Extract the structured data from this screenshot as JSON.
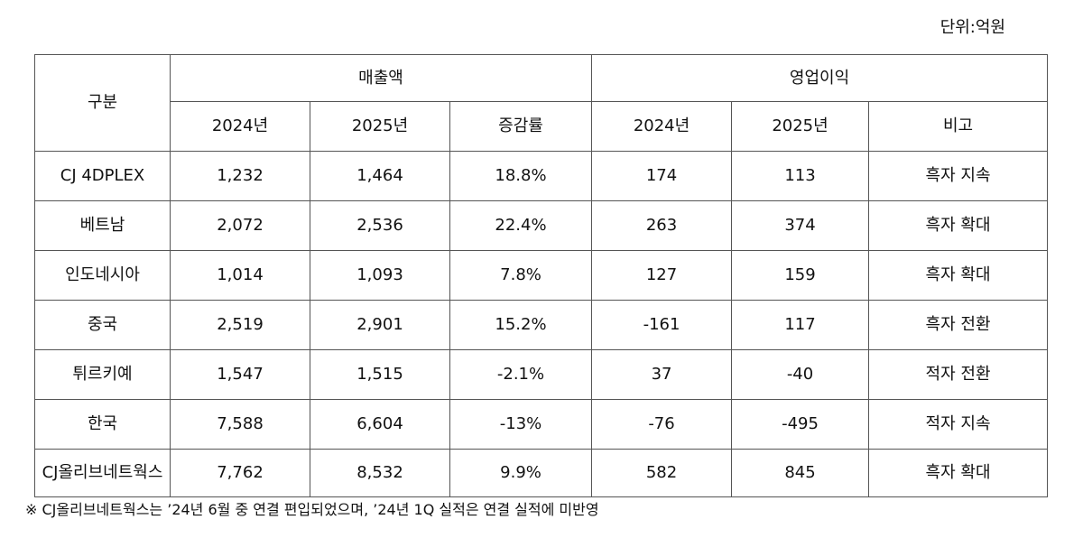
{
  "header": {
    "unit": "단위:억원"
  },
  "table": {
    "corner": "구분",
    "groups": [
      "매출액",
      "영업이익"
    ],
    "columns": [
      "2024년",
      "2025년",
      "증감률",
      "2024년",
      "2025년",
      "비고"
    ],
    "rows": [
      [
        "CJ 4DPLEX",
        "1,232",
        "1,464",
        "18.8%",
        "174",
        "113",
        "흑자 지속"
      ],
      [
        "베트남",
        "2,072",
        "2,536",
        "22.4%",
        "263",
        "374",
        "흑자 확대"
      ],
      [
        "인도네시아",
        "1,014",
        "1,093",
        "7.8%",
        "127",
        "159",
        "흑자 확대"
      ],
      [
        "중국",
        "2,519",
        "2,901",
        "15.2%",
        "-161",
        "117",
        "흑자 전환"
      ],
      [
        "튀르키예",
        "1,547",
        "1,515",
        "-2.1%",
        "37",
        "-40",
        "적자 전환"
      ],
      [
        "한국",
        "7,588",
        "6,604",
        "-13%",
        "-76",
        "-495",
        "적자 지속"
      ],
      [
        "CJ올리브네트웍스",
        "7,762",
        "8,532",
        "9.9%",
        "582",
        "845",
        "흑자 확대"
      ]
    ]
  },
  "footnote": "※ CJ올리브네트웍스는 ’24년 6월 중 연결 편입되었으며, ’24년 1Q 실적은 연결 실적에 미반영"
}
